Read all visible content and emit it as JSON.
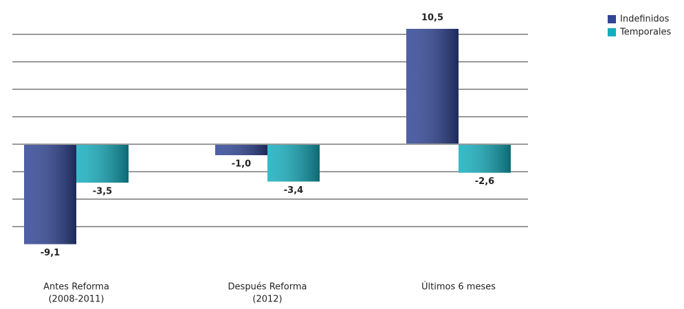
{
  "chart_data": {
    "type": "bar",
    "categories": [
      [
        "Antes Reforma",
        "(2008-2011)"
      ],
      [
        "Después Reforma",
        "(2012)"
      ],
      [
        "Últimos 6 meses"
      ]
    ],
    "series": [
      {
        "name": "Indefinidos",
        "color": "#2f4596",
        "values": [
          -9.1,
          -1.0,
          10.5
        ],
        "value_labels": [
          "-9,1",
          "-1,0",
          "10,5"
        ]
      },
      {
        "name": "Temporales",
        "color": "#14aebe",
        "values": [
          -3.5,
          -3.4,
          -2.6
        ],
        "value_labels": [
          "-3,5",
          "-3,4",
          "-2,6"
        ]
      }
    ],
    "ylim": [
      -11,
      11.5
    ],
    "yticks": [
      -7.5,
      -5,
      -2.5,
      0,
      2.5,
      5,
      7.5,
      10
    ],
    "grid": true,
    "legend": "top-right"
  }
}
